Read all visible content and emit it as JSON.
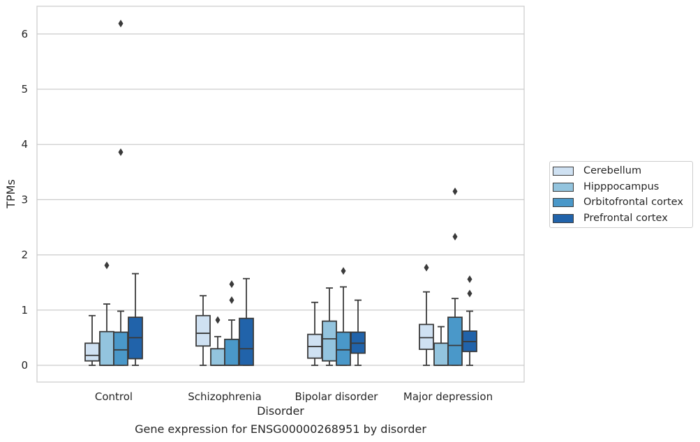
{
  "chart_data": {
    "type": "box",
    "xlabel": "Disorder",
    "ylabel": "TPMs",
    "categories": [
      "Control",
      "Schizophrenia",
      "Bipolar disorder",
      "Major depression"
    ],
    "yticks": [
      0,
      1,
      2,
      3,
      4,
      5,
      6
    ],
    "ylim": [
      -0.3,
      6.5
    ],
    "grid": true,
    "legend_position": "right",
    "series": [
      {
        "name": "Cerebellum",
        "color": "#cfe1f2",
        "boxes": [
          {
            "whislo": 0.0,
            "q1": 0.08,
            "med": 0.18,
            "q3": 0.4,
            "whishi": 0.9,
            "fliers": []
          },
          {
            "whislo": 0.0,
            "q1": 0.35,
            "med": 0.58,
            "q3": 0.9,
            "whishi": 1.26,
            "fliers": []
          },
          {
            "whislo": 0.0,
            "q1": 0.13,
            "med": 0.34,
            "q3": 0.56,
            "whishi": 1.14,
            "fliers": []
          },
          {
            "whislo": 0.0,
            "q1": 0.29,
            "med": 0.5,
            "q3": 0.74,
            "whishi": 1.33,
            "fliers": [
              1.77
            ]
          }
        ]
      },
      {
        "name": "Hipppocampus",
        "color": "#93c4de",
        "boxes": [
          {
            "whislo": 0.0,
            "q1": 0.0,
            "med": 0.0,
            "q3": 0.61,
            "whishi": 1.11,
            "fliers": [
              1.81
            ]
          },
          {
            "whislo": 0.0,
            "q1": 0.0,
            "med": 0.0,
            "q3": 0.3,
            "whishi": 0.52,
            "fliers": [
              0.82
            ]
          },
          {
            "whislo": 0.0,
            "q1": 0.08,
            "med": 0.48,
            "q3": 0.8,
            "whishi": 1.4,
            "fliers": []
          },
          {
            "whislo": 0.0,
            "q1": 0.0,
            "med": 0.0,
            "q3": 0.4,
            "whishi": 0.7,
            "fliers": []
          }
        ]
      },
      {
        "name": "Orbitofrontal cortex",
        "color": "#4a98c9",
        "boxes": [
          {
            "whislo": 0.0,
            "q1": 0.0,
            "med": 0.28,
            "q3": 0.6,
            "whishi": 0.98,
            "fliers": [
              3.86,
              6.19
            ]
          },
          {
            "whislo": 0.0,
            "q1": 0.0,
            "med": 0.0,
            "q3": 0.47,
            "whishi": 0.82,
            "fliers": [
              1.18,
              1.47
            ]
          },
          {
            "whislo": 0.0,
            "q1": 0.0,
            "med": 0.28,
            "q3": 0.6,
            "whishi": 1.42,
            "fliers": [
              1.71
            ]
          },
          {
            "whislo": 0.0,
            "q1": 0.0,
            "med": 0.36,
            "q3": 0.87,
            "whishi": 1.21,
            "fliers": [
              2.33,
              3.15
            ]
          }
        ]
      },
      {
        "name": "Prefrontal cortex",
        "color": "#2163aa",
        "boxes": [
          {
            "whislo": 0.0,
            "q1": 0.12,
            "med": 0.5,
            "q3": 0.87,
            "whishi": 1.66,
            "fliers": []
          },
          {
            "whislo": 0.0,
            "q1": 0.0,
            "med": 0.3,
            "q3": 0.85,
            "whishi": 1.57,
            "fliers": []
          },
          {
            "whislo": 0.0,
            "q1": 0.22,
            "med": 0.4,
            "q3": 0.6,
            "whishi": 1.18,
            "fliers": []
          },
          {
            "whislo": 0.0,
            "q1": 0.25,
            "med": 0.43,
            "q3": 0.62,
            "whishi": 0.98,
            "fliers": [
              1.3,
              1.56
            ]
          }
        ]
      }
    ],
    "caption": "Gene expression for ENSG00000268951 by disorder"
  },
  "colors": {
    "grid": "#cccccc",
    "box_edge": "#3a3a3a",
    "text": "#262626"
  }
}
